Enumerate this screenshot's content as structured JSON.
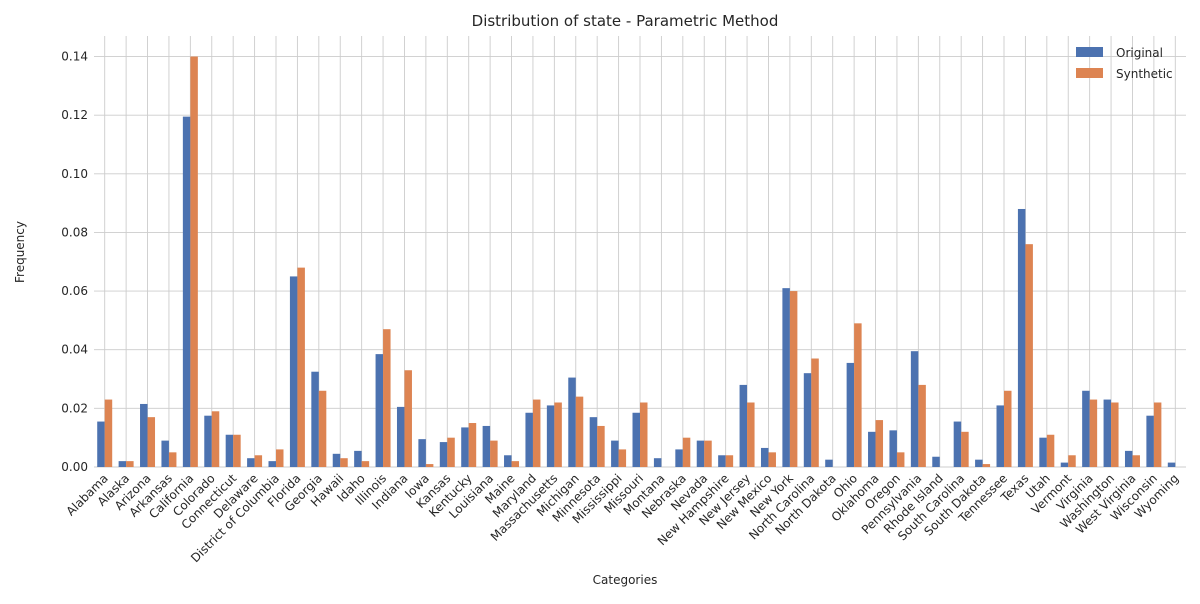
{
  "chart_data": {
    "type": "bar",
    "title": "Distribution of state - Parametric Method",
    "xlabel": "Categories",
    "ylabel": "Frequency",
    "ylim": [
      0,
      0.147
    ],
    "yticks": [
      0.0,
      0.02,
      0.04,
      0.06,
      0.08,
      0.1,
      0.12,
      0.14
    ],
    "ytick_labels": [
      "0.00",
      "0.02",
      "0.04",
      "0.06",
      "0.08",
      "0.10",
      "0.12",
      "0.14"
    ],
    "grid": true,
    "legend_position": "top-right",
    "categories": [
      "Alabama",
      "Alaska",
      "Arizona",
      "Arkansas",
      "California",
      "Colorado",
      "Connecticut",
      "Delaware",
      "District of Columbia",
      "Florida",
      "Georgia",
      "Hawaii",
      "Idaho",
      "Illinois",
      "Indiana",
      "Iowa",
      "Kansas",
      "Kentucky",
      "Louisiana",
      "Maine",
      "Maryland",
      "Massachusetts",
      "Michigan",
      "Minnesota",
      "Mississippi",
      "Missouri",
      "Montana",
      "Nebraska",
      "Nevada",
      "New Hampshire",
      "New Jersey",
      "New Mexico",
      "New York",
      "North Carolina",
      "North Dakota",
      "Ohio",
      "Oklahoma",
      "Oregon",
      "Pennsylvania",
      "Rhode Island",
      "South Carolina",
      "South Dakota",
      "Tennessee",
      "Texas",
      "Utah",
      "Vermont",
      "Virginia",
      "Washington",
      "West Virginia",
      "Wisconsin",
      "Wyoming"
    ],
    "series": [
      {
        "name": "Original",
        "color": "#4c72b0",
        "values": [
          0.0155,
          0.002,
          0.0215,
          0.009,
          0.1195,
          0.0175,
          0.011,
          0.003,
          0.002,
          0.065,
          0.0325,
          0.0045,
          0.0055,
          0.0385,
          0.0205,
          0.0095,
          0.0085,
          0.0135,
          0.014,
          0.004,
          0.0185,
          0.021,
          0.0305,
          0.017,
          0.009,
          0.0185,
          0.003,
          0.006,
          0.009,
          0.004,
          0.028,
          0.0065,
          0.061,
          0.032,
          0.0025,
          0.0355,
          0.012,
          0.0125,
          0.0395,
          0.0035,
          0.0155,
          0.0025,
          0.021,
          0.088,
          0.01,
          0.0015,
          0.026,
          0.023,
          0.0055,
          0.0175,
          0.0015
        ]
      },
      {
        "name": "Synthetic",
        "color": "#dd8452",
        "values": [
          0.023,
          0.002,
          0.017,
          0.005,
          0.14,
          0.019,
          0.011,
          0.004,
          0.006,
          0.068,
          0.026,
          0.003,
          0.002,
          0.047,
          0.033,
          0.001,
          0.01,
          0.015,
          0.009,
          0.002,
          0.023,
          0.022,
          0.024,
          0.014,
          0.006,
          0.022,
          0.0,
          0.01,
          0.009,
          0.004,
          0.022,
          0.005,
          0.06,
          0.037,
          0.0,
          0.049,
          0.016,
          0.005,
          0.028,
          0.0,
          0.012,
          0.001,
          0.026,
          0.076,
          0.011,
          0.004,
          0.023,
          0.022,
          0.004,
          0.022,
          0.0
        ]
      }
    ]
  }
}
